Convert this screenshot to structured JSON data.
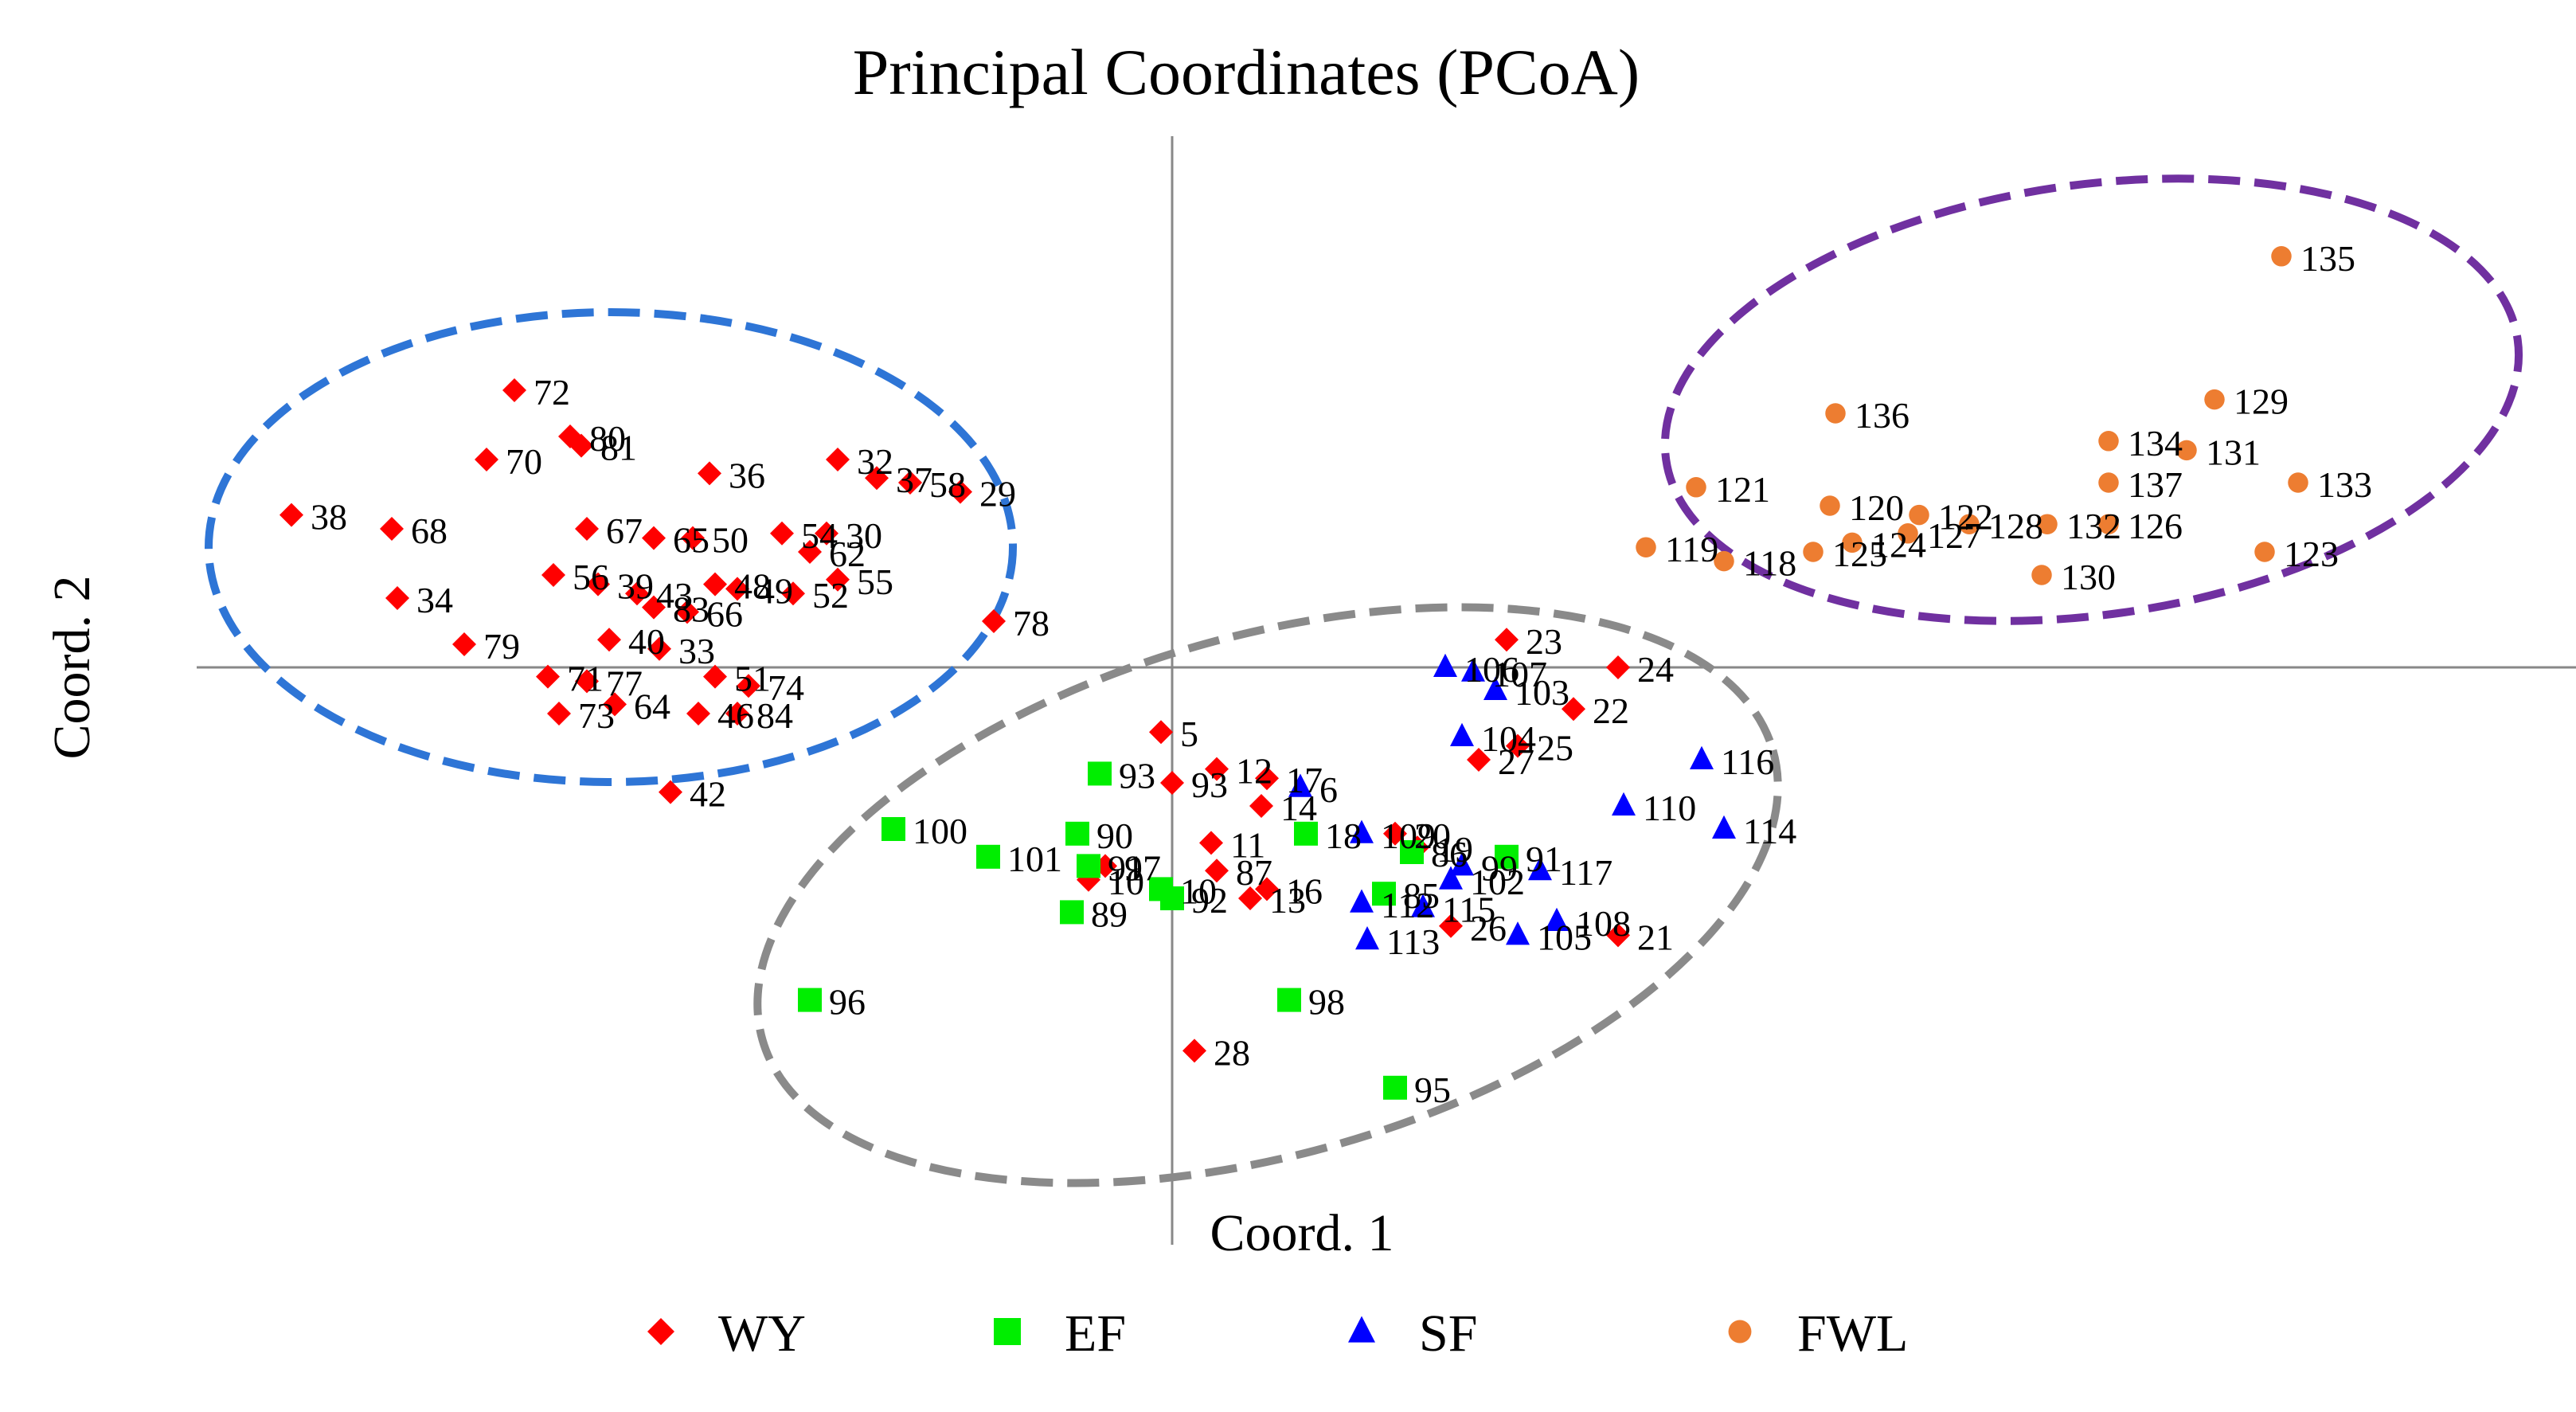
{
  "chart_data": {
    "type": "scatter",
    "title": "Principal Coordinates (PCoA)",
    "xlabel": "Coord. 1",
    "ylabel": "Coord. 2",
    "xlim": [
      -1.75,
      2.6
    ],
    "ylim": [
      -1.25,
      1.15
    ],
    "grid": false,
    "legend_position": "bottom",
    "ellipse_colors": [
      "#2e75d6",
      "#8a8a8a",
      "#7030a0"
    ],
    "series": [
      {
        "name": "WY",
        "marker": "diamond",
        "color": "#ff0000",
        "points": [
          {
            "label": "72",
            "x": -1.18,
            "y": 0.6
          },
          {
            "label": "80",
            "x": -1.08,
            "y": 0.5
          },
          {
            "label": "81",
            "x": -1.06,
            "y": 0.48
          },
          {
            "label": "70",
            "x": -1.23,
            "y": 0.45
          },
          {
            "label": "36",
            "x": -0.83,
            "y": 0.42
          },
          {
            "label": "32",
            "x": -0.6,
            "y": 0.45
          },
          {
            "label": "37",
            "x": -0.53,
            "y": 0.41
          },
          {
            "label": "58",
            "x": -0.47,
            "y": 0.4
          },
          {
            "label": "29",
            "x": -0.38,
            "y": 0.38
          },
          {
            "label": "38",
            "x": -1.58,
            "y": 0.33
          },
          {
            "label": "68",
            "x": -1.4,
            "y": 0.3
          },
          {
            "label": "67",
            "x": -1.05,
            "y": 0.3
          },
          {
            "label": "65",
            "x": -0.93,
            "y": 0.28
          },
          {
            "label": "50",
            "x": -0.86,
            "y": 0.28
          },
          {
            "label": "54",
            "x": -0.7,
            "y": 0.29
          },
          {
            "label": "30",
            "x": -0.62,
            "y": 0.29
          },
          {
            "label": "62",
            "x": -0.65,
            "y": 0.25
          },
          {
            "label": "34",
            "x": -1.39,
            "y": 0.15
          },
          {
            "label": "56",
            "x": -1.11,
            "y": 0.2
          },
          {
            "label": "39",
            "x": -1.03,
            "y": 0.18
          },
          {
            "label": "43",
            "x": -0.96,
            "y": 0.16
          },
          {
            "label": "48",
            "x": -0.82,
            "y": 0.18
          },
          {
            "label": "49",
            "x": -0.78,
            "y": 0.17
          },
          {
            "label": "55",
            "x": -0.6,
            "y": 0.19
          },
          {
            "label": "52",
            "x": -0.68,
            "y": 0.16
          },
          {
            "label": "83",
            "x": -0.93,
            "y": 0.13
          },
          {
            "label": "66",
            "x": -0.87,
            "y": 0.12
          },
          {
            "label": "78",
            "x": -0.32,
            "y": 0.1
          },
          {
            "label": "79",
            "x": -1.27,
            "y": 0.05
          },
          {
            "label": "40",
            "x": -1.01,
            "y": 0.06
          },
          {
            "label": "33",
            "x": -0.92,
            "y": 0.04
          },
          {
            "label": "71",
            "x": -1.12,
            "y": -0.02
          },
          {
            "label": "77",
            "x": -1.05,
            "y": -0.03
          },
          {
            "label": "51",
            "x": -0.82,
            "y": -0.02
          },
          {
            "label": "74",
            "x": -0.76,
            "y": -0.04
          },
          {
            "label": "73",
            "x": -1.1,
            "y": -0.1
          },
          {
            "label": "64",
            "x": -1.0,
            "y": -0.08
          },
          {
            "label": "46",
            "x": -0.85,
            "y": -0.1
          },
          {
            "label": "84",
            "x": -0.78,
            "y": -0.1
          },
          {
            "label": "42",
            "x": -0.9,
            "y": -0.27
          },
          {
            "label": "5",
            "x": -0.02,
            "y": -0.14
          },
          {
            "label": "93",
            "x": 0.0,
            "y": -0.25
          },
          {
            "label": "12",
            "x": 0.08,
            "y": -0.22
          },
          {
            "label": "17",
            "x": 0.17,
            "y": -0.24
          },
          {
            "label": "14",
            "x": 0.16,
            "y": -0.3
          },
          {
            "label": "11",
            "x": 0.07,
            "y": -0.38
          },
          {
            "label": "87",
            "x": 0.08,
            "y": -0.44
          },
          {
            "label": "97",
            "x": -0.12,
            "y": -0.43
          },
          {
            "label": "10",
            "x": -0.15,
            "y": -0.46
          },
          {
            "label": "13",
            "x": 0.14,
            "y": -0.5
          },
          {
            "label": "16",
            "x": 0.17,
            "y": -0.48
          },
          {
            "label": "20",
            "x": 0.4,
            "y": -0.36
          },
          {
            "label": "19",
            "x": 0.44,
            "y": -0.39
          },
          {
            "label": "27",
            "x": 0.55,
            "y": -0.2
          },
          {
            "label": "25",
            "x": 0.62,
            "y": -0.17
          },
          {
            "label": "23",
            "x": 0.6,
            "y": 0.06
          },
          {
            "label": "24",
            "x": 0.8,
            "y": 0.0
          },
          {
            "label": "22",
            "x": 0.72,
            "y": -0.09
          },
          {
            "label": "21",
            "x": 0.8,
            "y": -0.58
          },
          {
            "label": "26",
            "x": 0.5,
            "y": -0.56
          },
          {
            "label": "28",
            "x": 0.04,
            "y": -0.83
          }
        ]
      },
      {
        "name": "EF",
        "marker": "square",
        "color": "#00ee00",
        "points": [
          {
            "label": "93",
            "x": -0.13,
            "y": -0.23
          },
          {
            "label": "100",
            "x": -0.5,
            "y": -0.35
          },
          {
            "label": "90",
            "x": -0.17,
            "y": -0.36
          },
          {
            "label": "101",
            "x": -0.33,
            "y": -0.41
          },
          {
            "label": "91",
            "x": -0.15,
            "y": -0.43
          },
          {
            "label": "10",
            "x": -0.02,
            "y": -0.48
          },
          {
            "label": "89",
            "x": -0.18,
            "y": -0.53
          },
          {
            "label": "92",
            "x": 0.0,
            "y": -0.5
          },
          {
            "label": "18",
            "x": 0.24,
            "y": -0.36
          },
          {
            "label": "86",
            "x": 0.43,
            "y": -0.4
          },
          {
            "label": "85",
            "x": 0.38,
            "y": -0.49
          },
          {
            "label": "91",
            "x": 0.6,
            "y": -0.41
          },
          {
            "label": "96",
            "x": -0.65,
            "y": -0.72
          },
          {
            "label": "98",
            "x": 0.21,
            "y": -0.72
          },
          {
            "label": "95",
            "x": 0.4,
            "y": -0.91
          }
        ]
      },
      {
        "name": "SF",
        "marker": "triangle",
        "color": "#0000ff",
        "points": [
          {
            "label": "106",
            "x": 0.49,
            "y": 0.0
          },
          {
            "label": "107",
            "x": 0.54,
            "y": -0.01
          },
          {
            "label": "103",
            "x": 0.58,
            "y": -0.05
          },
          {
            "label": "104",
            "x": 0.52,
            "y": -0.15
          },
          {
            "label": "6",
            "x": 0.23,
            "y": -0.26
          },
          {
            "label": "109",
            "x": 0.34,
            "y": -0.36
          },
          {
            "label": "116",
            "x": 0.95,
            "y": -0.2
          },
          {
            "label": "110",
            "x": 0.81,
            "y": -0.3
          },
          {
            "label": "114",
            "x": 0.99,
            "y": -0.35
          },
          {
            "label": "99",
            "x": 0.52,
            "y": -0.43
          },
          {
            "label": "117",
            "x": 0.66,
            "y": -0.44
          },
          {
            "label": "102",
            "x": 0.5,
            "y": -0.46
          },
          {
            "label": "108",
            "x": 0.69,
            "y": -0.55
          },
          {
            "label": "105",
            "x": 0.62,
            "y": -0.58
          },
          {
            "label": "112",
            "x": 0.34,
            "y": -0.51
          },
          {
            "label": "113",
            "x": 0.35,
            "y": -0.59
          },
          {
            "label": "115",
            "x": 0.45,
            "y": -0.52
          }
        ]
      },
      {
        "name": "FWL",
        "marker": "circle",
        "color": "#ed7d31",
        "points": [
          {
            "label": "135",
            "x": 1.99,
            "y": 0.89
          },
          {
            "label": "136",
            "x": 1.19,
            "y": 0.55
          },
          {
            "label": "129",
            "x": 1.87,
            "y": 0.58
          },
          {
            "label": "134",
            "x": 1.68,
            "y": 0.49
          },
          {
            "label": "131",
            "x": 1.82,
            "y": 0.47
          },
          {
            "label": "137",
            "x": 1.68,
            "y": 0.4
          },
          {
            "label": "133",
            "x": 2.02,
            "y": 0.4
          },
          {
            "label": "121",
            "x": 0.94,
            "y": 0.39
          },
          {
            "label": "120",
            "x": 1.18,
            "y": 0.35
          },
          {
            "label": "122",
            "x": 1.34,
            "y": 0.33
          },
          {
            "label": "128",
            "x": 1.43,
            "y": 0.31
          },
          {
            "label": "132",
            "x": 1.57,
            "y": 0.31
          },
          {
            "label": "126",
            "x": 1.68,
            "y": 0.31
          },
          {
            "label": "127",
            "x": 1.32,
            "y": 0.29
          },
          {
            "label": "119",
            "x": 0.85,
            "y": 0.26
          },
          {
            "label": "118",
            "x": 0.99,
            "y": 0.23
          },
          {
            "label": "125",
            "x": 1.15,
            "y": 0.25
          },
          {
            "label": "124",
            "x": 1.22,
            "y": 0.27
          },
          {
            "label": "123",
            "x": 1.96,
            "y": 0.25
          },
          {
            "label": "130",
            "x": 1.56,
            "y": 0.2
          }
        ]
      }
    ]
  }
}
